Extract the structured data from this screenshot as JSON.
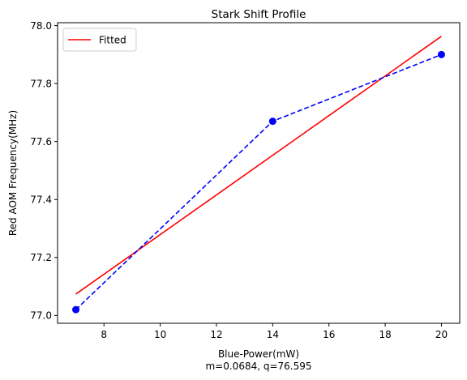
{
  "chart_data": {
    "type": "line",
    "title": "Stark Shift Profile",
    "xlabel": "Blue-Power(mW)",
    "xlabel_sub": "m=0.0684, q=76.595",
    "ylabel": "Red AOM Frequency(MHz)",
    "xlim": [
      6.35,
      20.65
    ],
    "ylim": [
      76.973,
      78.01
    ],
    "xticks": [
      8,
      10,
      12,
      14,
      16,
      18,
      20
    ],
    "yticks": [
      77.0,
      77.2,
      77.4,
      77.6,
      77.8,
      78.0
    ],
    "grid": false,
    "legend_position": "top-left",
    "series": [
      {
        "style": "dashed-markers",
        "color": "#0000ff",
        "x": [
          7,
          14,
          20
        ],
        "y": [
          77.02,
          77.67,
          77.9
        ]
      },
      {
        "name": "Fitted",
        "style": "solid",
        "color": "#ff0000",
        "slope": 0.0684,
        "intercept": 76.595,
        "x": [
          7,
          20
        ],
        "y": [
          77.0738,
          77.963
        ]
      }
    ]
  }
}
